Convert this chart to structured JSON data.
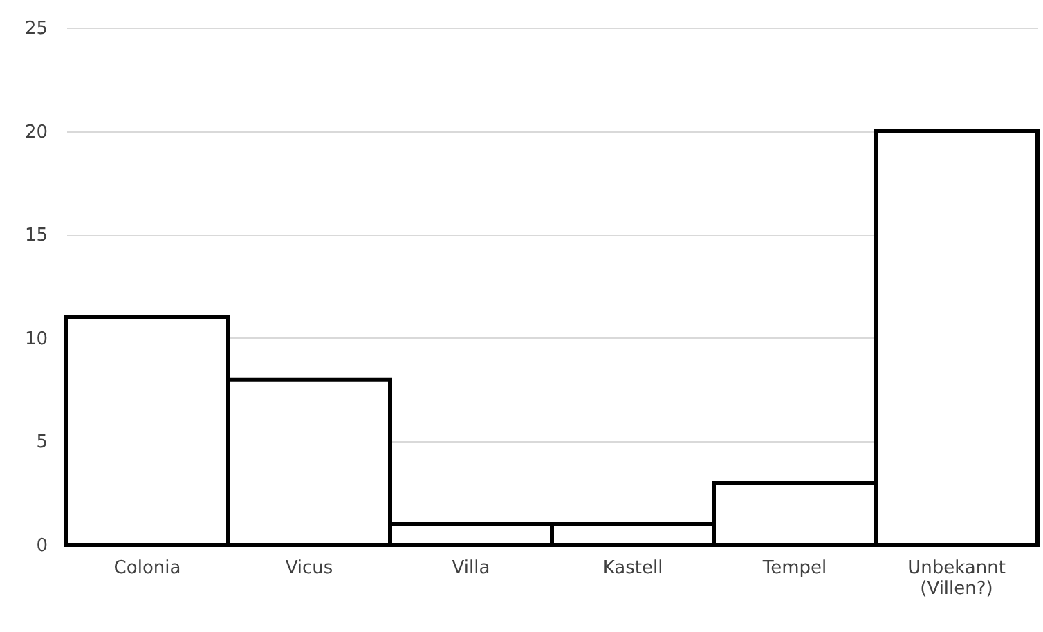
{
  "chart_data": {
    "type": "bar",
    "categories": [
      "Colonia",
      "Vicus",
      "Villa",
      "Kastell",
      "Tempel",
      "Unbekannt (Villen?)"
    ],
    "values": [
      11,
      8,
      1,
      1,
      3,
      20
    ],
    "color": "#ffffff",
    "ylim": [
      0,
      25
    ],
    "yticks": [
      0,
      5,
      10,
      15,
      20,
      25
    ],
    "grid": "y"
  }
}
